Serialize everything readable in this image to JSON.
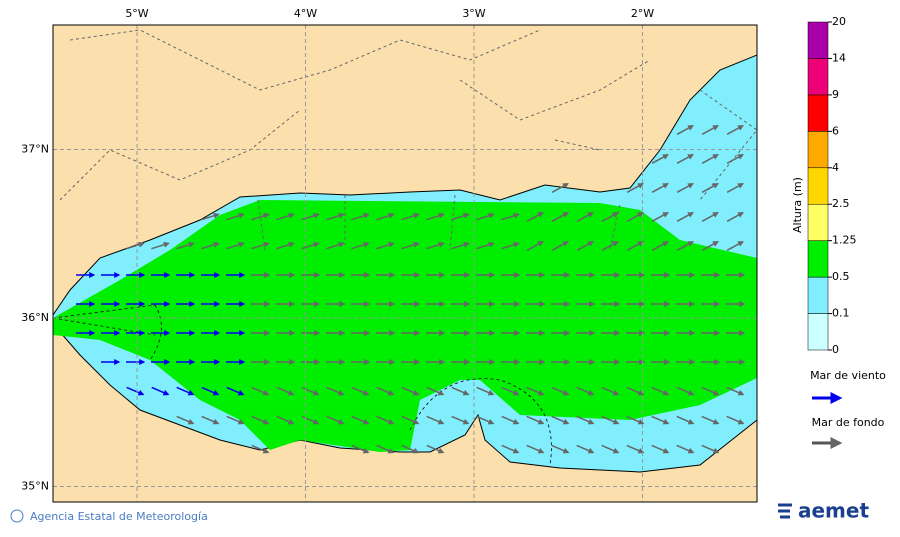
{
  "map": {
    "lon_ticks": [
      {
        "value": -5,
        "label": "5°W"
      },
      {
        "value": -4,
        "label": "4°W"
      },
      {
        "value": -3,
        "label": "3°W"
      },
      {
        "value": -2,
        "label": "2°W"
      }
    ],
    "lat_ticks": [
      {
        "value": 37,
        "label": "37°N"
      },
      {
        "value": 36,
        "label": "36°N"
      },
      {
        "value": 35,
        "label": "35°N"
      }
    ],
    "colorbar": {
      "label": "Altura (m)",
      "ticks": [
        0,
        0.1,
        0.5,
        1.25,
        2.5,
        4,
        6,
        9,
        14,
        20
      ],
      "colors": [
        "#ccffff",
        "#80eefc",
        "#00ee00",
        "#ffff66",
        "#ffd700",
        "#ffaa00",
        "#ff0000",
        "#ee0077",
        "#aa00aa"
      ]
    },
    "legend": [
      {
        "name": "Mar de viento",
        "color": "#0000ee"
      },
      {
        "name": "Mar de fondo",
        "color": "#555555"
      }
    ],
    "footer": {
      "credit": "Agencia Estatal de Meteorología",
      "logo": "aemet"
    }
  }
}
